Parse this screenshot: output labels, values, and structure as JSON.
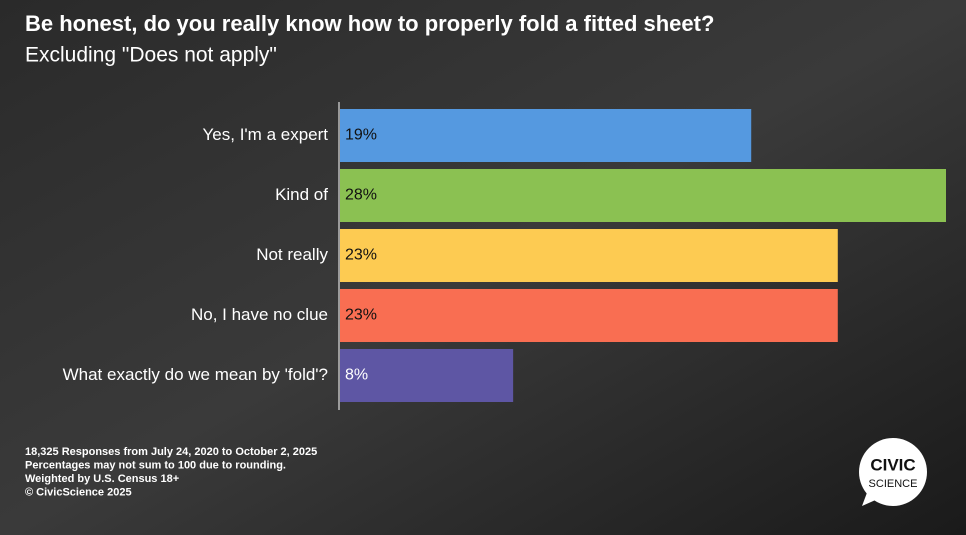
{
  "chart_data": {
    "type": "bar",
    "orientation": "horizontal",
    "title": "Be honest, do you really know how to properly fold a fitted sheet?",
    "subtitle": "Excluding \"Does not apply\"",
    "categories": [
      "Yes, I'm a expert",
      "Kind of",
      "Not really",
      "No, I have no clue",
      "What exactly do we mean by 'fold'?"
    ],
    "values": [
      19,
      28,
      23,
      23,
      8
    ],
    "value_labels": [
      "19%",
      "28%",
      "23%",
      "23%",
      "8%"
    ],
    "colors": [
      "#5599e0",
      "#8bc152",
      "#fdcb52",
      "#f96e52",
      "#5e56a4"
    ],
    "footnotes": [
      "18,325 Responses from July 24, 2020 to October 2, 2025",
      "Percentages may not sum to 100 due to rounding.",
      "Weighted by U.S. Census 18+",
      "© CivicScience 2025"
    ],
    "logo": [
      "CIVIC",
      "SCIENCE"
    ]
  }
}
